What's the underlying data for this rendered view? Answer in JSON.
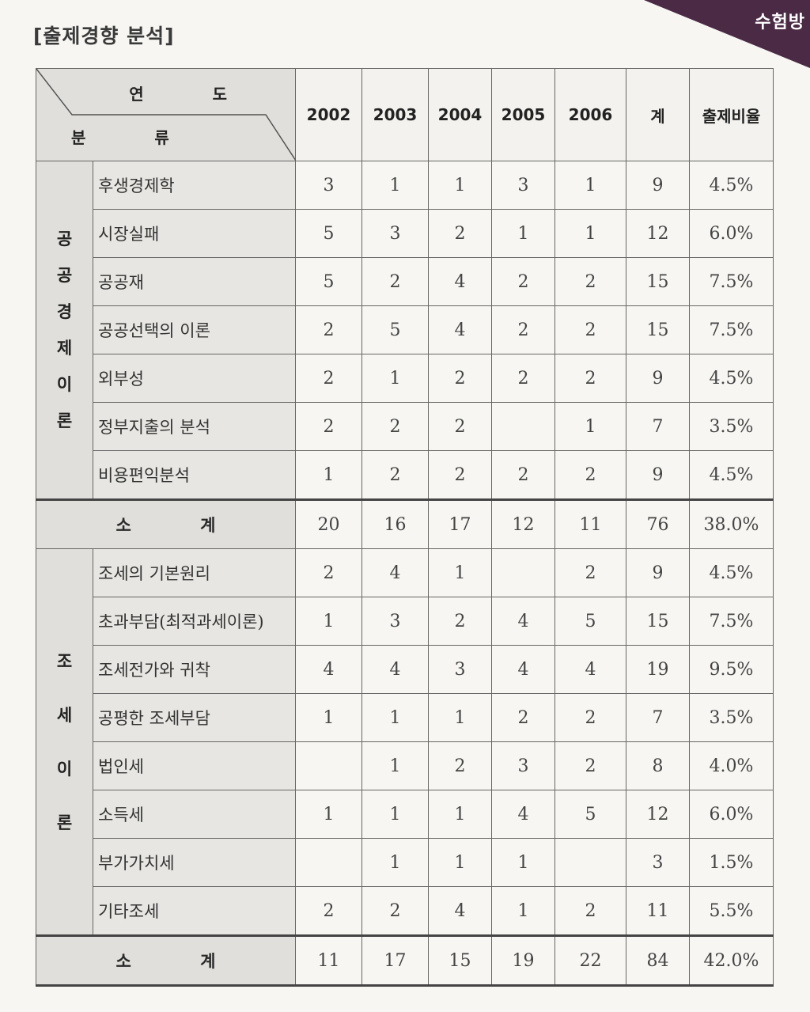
{
  "heading": "[출제경향 분석]",
  "corner_label": "수험방",
  "header": {
    "corner_year": "연 도",
    "corner_category": "분 류",
    "columns": [
      "2002",
      "2003",
      "2004",
      "2005",
      "2006",
      "계",
      "출제비율"
    ]
  },
  "groups": [
    {
      "name": "공공경제이론",
      "rows": [
        {
          "label": "후생경제학",
          "values": [
            "3",
            "1",
            "1",
            "3",
            "1",
            "9",
            "4.5%"
          ]
        },
        {
          "label": "시장실패",
          "values": [
            "5",
            "3",
            "2",
            "1",
            "1",
            "12",
            "6.0%"
          ]
        },
        {
          "label": "공공재",
          "values": [
            "5",
            "2",
            "4",
            "2",
            "2",
            "15",
            "7.5%"
          ]
        },
        {
          "label": "공공선택의 이론",
          "values": [
            "2",
            "5",
            "4",
            "2",
            "2",
            "15",
            "7.5%"
          ]
        },
        {
          "label": "외부성",
          "values": [
            "2",
            "1",
            "2",
            "2",
            "2",
            "9",
            "4.5%"
          ]
        },
        {
          "label": "정부지출의 분석",
          "values": [
            "2",
            "2",
            "2",
            "",
            "1",
            "7",
            "3.5%"
          ]
        },
        {
          "label": "비용편익분석",
          "values": [
            "1",
            "2",
            "2",
            "2",
            "2",
            "9",
            "4.5%"
          ]
        }
      ],
      "subtotal": {
        "label": "소 계",
        "values": [
          "20",
          "16",
          "17",
          "12",
          "11",
          "76",
          "38.0%"
        ]
      }
    },
    {
      "name": "조세이론",
      "rows": [
        {
          "label": "조세의 기본원리",
          "values": [
            "2",
            "4",
            "1",
            "",
            "2",
            "9",
            "4.5%"
          ]
        },
        {
          "label": "초과부담(최적과세이론)",
          "values": [
            "1",
            "3",
            "2",
            "4",
            "5",
            "15",
            "7.5%"
          ]
        },
        {
          "label": "조세전가와 귀착",
          "values": [
            "4",
            "4",
            "3",
            "4",
            "4",
            "19",
            "9.5%"
          ]
        },
        {
          "label": "공평한 조세부담",
          "values": [
            "1",
            "1",
            "1",
            "2",
            "2",
            "7",
            "3.5%"
          ]
        },
        {
          "label": "법인세",
          "values": [
            "",
            "1",
            "2",
            "3",
            "2",
            "8",
            "4.0%"
          ]
        },
        {
          "label": "소득세",
          "values": [
            "1",
            "1",
            "1",
            "4",
            "5",
            "12",
            "6.0%"
          ]
        },
        {
          "label": "부가가치세",
          "values": [
            "",
            "1",
            "1",
            "1",
            "",
            "3",
            "1.5%"
          ]
        },
        {
          "label": "기타조세",
          "values": [
            "2",
            "2",
            "4",
            "1",
            "2",
            "11",
            "5.5%"
          ]
        }
      ],
      "subtotal": {
        "label": "소 계",
        "values": [
          "11",
          "17",
          "15",
          "19",
          "22",
          "84",
          "42.0%"
        ]
      }
    }
  ]
}
